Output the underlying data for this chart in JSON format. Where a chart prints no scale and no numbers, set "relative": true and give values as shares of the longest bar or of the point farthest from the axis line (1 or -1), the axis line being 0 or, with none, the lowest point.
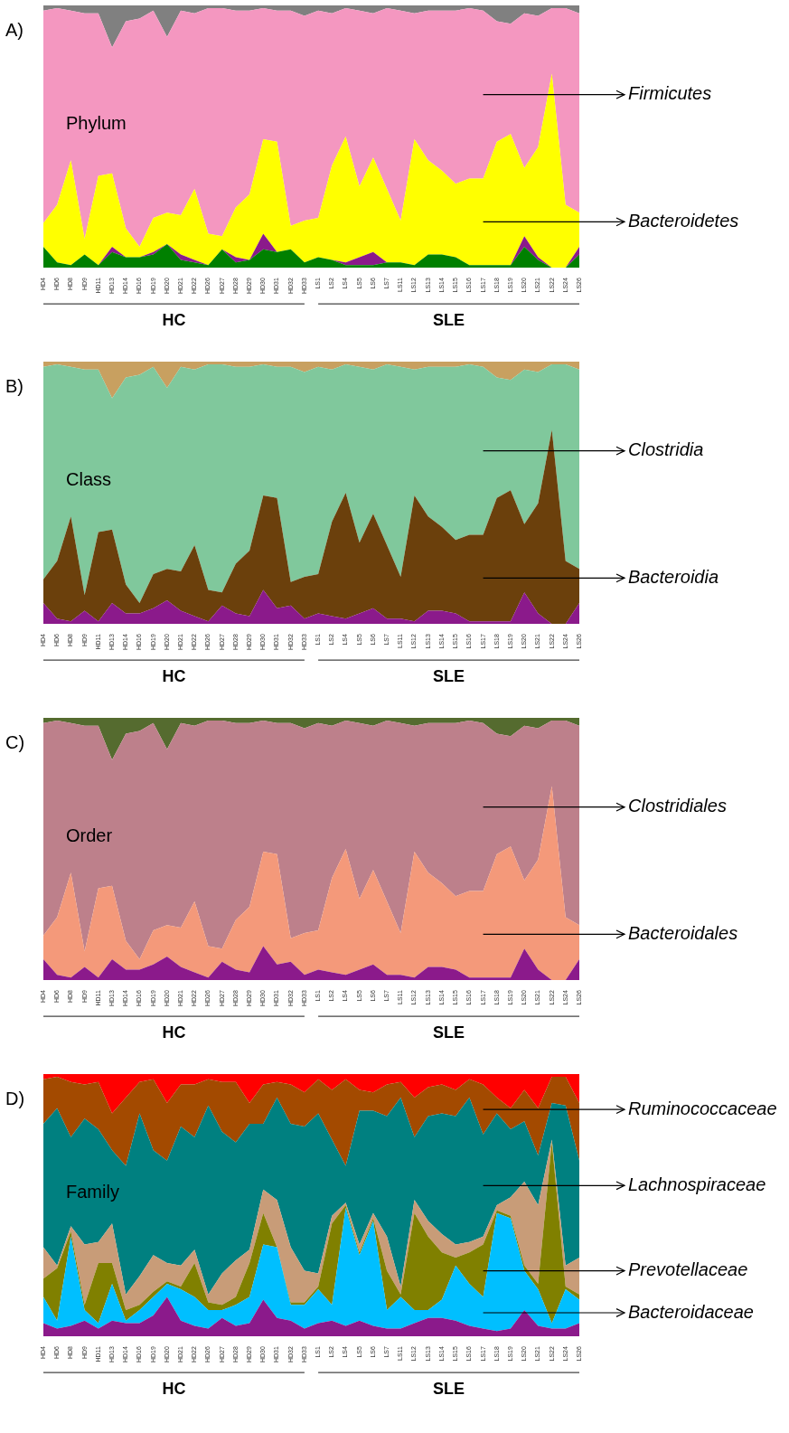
{
  "chart_data": [
    {
      "type": "area",
      "title": "A)",
      "relative": true,
      "stacked": true,
      "annotations": [
        "Phylum",
        "HC",
        "SLE"
      ],
      "categories": [
        "HD4",
        "HD6",
        "HD8",
        "HD9",
        "HD11",
        "HD13",
        "HD14",
        "HD16",
        "HD19",
        "HD20",
        "HD21",
        "HD22",
        "HD26",
        "HD27",
        "HD28",
        "HD29",
        "HD30",
        "HD31",
        "HD32",
        "HD33",
        "LS1",
        "LS2",
        "LS4",
        "LS5",
        "LS6",
        "LS7",
        "LS11",
        "LS12",
        "LS13",
        "LS14",
        "LS15",
        "LS16",
        "LS17",
        "LS18",
        "LS19",
        "LS20",
        "LS21",
        "LS22",
        "LS24",
        "LS26"
      ],
      "series": [
        {
          "color": "#008000",
          "values": [
            0.08,
            0.02,
            0.01,
            0.05,
            0.01,
            0.06,
            0.04,
            0.04,
            0.05,
            0.09,
            0.03,
            0.02,
            0.01,
            0.07,
            0.02,
            0.03,
            0.07,
            0.06,
            0.07,
            0.02,
            0.04,
            0.03,
            0.01,
            0.01,
            0.01,
            0.02,
            0.02,
            0.01,
            0.05,
            0.05,
            0.04,
            0.01,
            0.01,
            0.01,
            0.01,
            0.08,
            0.03,
            0,
            0,
            0.05
          ]
        },
        {
          "color": "#8b1a8b",
          "values": [
            0,
            0,
            0,
            0,
            0,
            0.02,
            0,
            0,
            0.01,
            0,
            0.02,
            0.01,
            0,
            0,
            0.02,
            0,
            0.06,
            0,
            0,
            0,
            0,
            0,
            0.01,
            0.03,
            0.05,
            0,
            0,
            0,
            0,
            0,
            0,
            0,
            0,
            0,
            0,
            0.04,
            0.01,
            0,
            0,
            0.03
          ]
        },
        {
          "name": "Bacteroidetes",
          "color": "#ffff00",
          "values": [
            0.09,
            0.22,
            0.4,
            0.06,
            0.34,
            0.28,
            0.11,
            0.04,
            0.13,
            0.12,
            0.15,
            0.27,
            0.12,
            0.05,
            0.19,
            0.25,
            0.36,
            0.42,
            0.09,
            0.16,
            0.15,
            0.36,
            0.48,
            0.27,
            0.36,
            0.28,
            0.16,
            0.48,
            0.36,
            0.32,
            0.28,
            0.33,
            0.33,
            0.47,
            0.5,
            0.26,
            0.42,
            0.74,
            0.24,
            0.13
          ]
        },
        {
          "name": "Firmicutes",
          "color": "#f497c0",
          "values": [
            0.81,
            0.75,
            0.57,
            0.86,
            0.62,
            0.48,
            0.79,
            0.87,
            0.79,
            0.67,
            0.78,
            0.67,
            0.86,
            0.87,
            0.75,
            0.7,
            0.5,
            0.5,
            0.82,
            0.78,
            0.79,
            0.58,
            0.49,
            0.67,
            0.55,
            0.69,
            0.8,
            0.48,
            0.57,
            0.61,
            0.66,
            0.65,
            0.64,
            0.46,
            0.42,
            0.59,
            0.5,
            0.25,
            0.75,
            0.76
          ]
        },
        {
          "color": "#808080",
          "values": [
            0.02,
            0.01,
            0.02,
            0.03,
            0.03,
            0.16,
            0.06,
            0.05,
            0.02,
            0.12,
            0.02,
            0.03,
            0.01,
            0.01,
            0.02,
            0.02,
            0.01,
            0.02,
            0.02,
            0.04,
            0.02,
            0.03,
            0.01,
            0.02,
            0.03,
            0.01,
            0.02,
            0.03,
            0.02,
            0.02,
            0.02,
            0.01,
            0.02,
            0.06,
            0.07,
            0.03,
            0.04,
            0.01,
            0.01,
            0.03
          ]
        }
      ]
    },
    {
      "type": "area",
      "title": "B)",
      "relative": true,
      "stacked": true,
      "annotations": [
        "Class",
        "HC",
        "SLE"
      ],
      "categories": [
        "HD4",
        "HD6",
        "HD8",
        "HD9",
        "HD11",
        "HD13",
        "HD14",
        "HD16",
        "HD19",
        "HD20",
        "HD21",
        "HD22",
        "HD26",
        "HD27",
        "HD28",
        "HD29",
        "HD30",
        "HD31",
        "HD32",
        "HD33",
        "LS1",
        "LS2",
        "LS4",
        "LS5",
        "LS6",
        "LS7",
        "LS11",
        "LS12",
        "LS13",
        "LS14",
        "LS15",
        "LS16",
        "LS17",
        "LS18",
        "LS19",
        "LS20",
        "LS21",
        "LS22",
        "LS24",
        "LS26"
      ],
      "series": [
        {
          "color": "#8b1a8b",
          "values": [
            0.08,
            0.02,
            0.01,
            0.05,
            0.01,
            0.08,
            0.04,
            0.04,
            0.06,
            0.09,
            0.05,
            0.03,
            0.01,
            0.07,
            0.04,
            0.03,
            0.13,
            0.06,
            0.07,
            0.02,
            0.04,
            0.03,
            0.02,
            0.04,
            0.06,
            0.02,
            0.02,
            0.01,
            0.05,
            0.05,
            0.04,
            0.01,
            0.01,
            0.01,
            0.01,
            0.12,
            0.04,
            0,
            0,
            0.08
          ]
        },
        {
          "name": "Bacteroidia",
          "color": "#6b400c",
          "values": [
            0.09,
            0.22,
            0.4,
            0.06,
            0.34,
            0.28,
            0.11,
            0.04,
            0.13,
            0.12,
            0.15,
            0.27,
            0.12,
            0.05,
            0.19,
            0.25,
            0.36,
            0.42,
            0.09,
            0.16,
            0.15,
            0.36,
            0.48,
            0.27,
            0.36,
            0.28,
            0.16,
            0.48,
            0.36,
            0.32,
            0.28,
            0.33,
            0.33,
            0.47,
            0.5,
            0.26,
            0.42,
            0.74,
            0.24,
            0.13
          ]
        },
        {
          "name": "Clostridia",
          "color": "#80c89c",
          "values": [
            0.81,
            0.75,
            0.57,
            0.86,
            0.62,
            0.5,
            0.79,
            0.87,
            0.79,
            0.69,
            0.78,
            0.67,
            0.86,
            0.87,
            0.75,
            0.7,
            0.5,
            0.5,
            0.82,
            0.78,
            0.79,
            0.58,
            0.49,
            0.67,
            0.55,
            0.69,
            0.8,
            0.48,
            0.57,
            0.61,
            0.66,
            0.65,
            0.64,
            0.46,
            0.42,
            0.59,
            0.5,
            0.25,
            0.75,
            0.76
          ]
        },
        {
          "color": "#c8a060",
          "values": [
            0.02,
            0.01,
            0.02,
            0.03,
            0.03,
            0.14,
            0.06,
            0.05,
            0.02,
            0.1,
            0.02,
            0.03,
            0.01,
            0.01,
            0.02,
            0.02,
            0.01,
            0.02,
            0.02,
            0.04,
            0.02,
            0.03,
            0.01,
            0.02,
            0.03,
            0.01,
            0.02,
            0.03,
            0.02,
            0.02,
            0.02,
            0.01,
            0.02,
            0.06,
            0.07,
            0.03,
            0.04,
            0.01,
            0.01,
            0.03
          ]
        }
      ]
    },
    {
      "type": "area",
      "title": "C)",
      "relative": true,
      "stacked": true,
      "annotations": [
        "Order",
        "HC",
        "SLE"
      ],
      "categories": [
        "HD4",
        "HD6",
        "HD8",
        "HD9",
        "HD11",
        "HD13",
        "HD14",
        "HD16",
        "HD19",
        "HD20",
        "HD21",
        "HD22",
        "HD26",
        "HD27",
        "HD28",
        "HD29",
        "HD30",
        "HD31",
        "HD32",
        "HD33",
        "LS1",
        "LS2",
        "LS4",
        "LS5",
        "LS6",
        "LS7",
        "LS11",
        "LS12",
        "LS13",
        "LS14",
        "LS15",
        "LS16",
        "LS17",
        "LS18",
        "LS19",
        "LS20",
        "LS21",
        "LS22",
        "LS24",
        "LS26"
      ],
      "series": [
        {
          "color": "#8b1a8b",
          "values": [
            0.08,
            0.02,
            0.01,
            0.05,
            0.01,
            0.08,
            0.04,
            0.04,
            0.06,
            0.09,
            0.05,
            0.03,
            0.01,
            0.07,
            0.04,
            0.03,
            0.13,
            0.06,
            0.07,
            0.02,
            0.04,
            0.03,
            0.02,
            0.04,
            0.06,
            0.02,
            0.02,
            0.01,
            0.05,
            0.05,
            0.04,
            0.01,
            0.01,
            0.01,
            0.01,
            0.12,
            0.04,
            0,
            0,
            0.08
          ]
        },
        {
          "name": "Bacteroidales",
          "color": "#f4997a",
          "values": [
            0.09,
            0.22,
            0.4,
            0.06,
            0.34,
            0.28,
            0.11,
            0.04,
            0.13,
            0.12,
            0.15,
            0.27,
            0.12,
            0.05,
            0.19,
            0.25,
            0.36,
            0.42,
            0.09,
            0.16,
            0.15,
            0.36,
            0.48,
            0.27,
            0.36,
            0.28,
            0.16,
            0.48,
            0.36,
            0.32,
            0.28,
            0.33,
            0.33,
            0.47,
            0.5,
            0.26,
            0.42,
            0.74,
            0.24,
            0.13
          ]
        },
        {
          "name": "Clostridiales",
          "color": "#bd808b",
          "values": [
            0.81,
            0.75,
            0.57,
            0.86,
            0.62,
            0.48,
            0.79,
            0.87,
            0.79,
            0.67,
            0.78,
            0.67,
            0.86,
            0.87,
            0.75,
            0.7,
            0.5,
            0.5,
            0.82,
            0.78,
            0.79,
            0.58,
            0.49,
            0.67,
            0.55,
            0.69,
            0.8,
            0.48,
            0.57,
            0.61,
            0.66,
            0.65,
            0.64,
            0.46,
            0.42,
            0.59,
            0.5,
            0.25,
            0.75,
            0.76
          ]
        },
        {
          "color": "#556b2f",
          "values": [
            0.02,
            0.01,
            0.02,
            0.03,
            0.03,
            0.16,
            0.06,
            0.05,
            0.02,
            0.12,
            0.02,
            0.03,
            0.01,
            0.01,
            0.02,
            0.02,
            0.01,
            0.02,
            0.02,
            0.04,
            0.02,
            0.03,
            0.01,
            0.02,
            0.03,
            0.01,
            0.02,
            0.03,
            0.02,
            0.02,
            0.02,
            0.01,
            0.02,
            0.06,
            0.07,
            0.03,
            0.04,
            0.01,
            0.01,
            0.03
          ]
        }
      ]
    },
    {
      "type": "area",
      "title": "D)",
      "relative": true,
      "stacked": true,
      "annotations": [
        "Family",
        "HC",
        "SLE"
      ],
      "categories": [
        "HD4",
        "HD6",
        "HD8",
        "HD9",
        "HD11",
        "HD13",
        "HD14",
        "HD16",
        "HD19",
        "HD20",
        "HD21",
        "HD22",
        "HD26",
        "HD27",
        "HD28",
        "HD29",
        "HD30",
        "HD31",
        "HD32",
        "HD33",
        "LS1",
        "LS2",
        "LS4",
        "LS5",
        "LS6",
        "LS7",
        "LS11",
        "LS12",
        "LS13",
        "LS14",
        "LS15",
        "LS16",
        "LS17",
        "LS18",
        "LS19",
        "LS20",
        "LS21",
        "LS22",
        "LS24",
        "LS26"
      ],
      "series": [
        {
          "color": "#8b1a8b",
          "values": [
            0.05,
            0.03,
            0.04,
            0.06,
            0.03,
            0.06,
            0.05,
            0.05,
            0.08,
            0.15,
            0.06,
            0.04,
            0.03,
            0.07,
            0.04,
            0.05,
            0.14,
            0.07,
            0.06,
            0.03,
            0.05,
            0.06,
            0.04,
            0.06,
            0.04,
            0.03,
            0.03,
            0.05,
            0.07,
            0.07,
            0.06,
            0.04,
            0.03,
            0.02,
            0.03,
            0.1,
            0.04,
            0.03,
            0.03,
            0.05
          ]
        },
        {
          "name": "Bacteroidaceae",
          "color": "#00bfff",
          "values": [
            0.1,
            0.03,
            0.34,
            0.04,
            0.02,
            0.14,
            0.01,
            0.05,
            0.07,
            0.05,
            0.12,
            0.11,
            0.07,
            0.03,
            0.08,
            0.1,
            0.21,
            0.27,
            0.06,
            0.09,
            0.13,
            0.06,
            0.45,
            0.25,
            0.4,
            0.07,
            0.12,
            0.05,
            0.03,
            0.07,
            0.21,
            0.16,
            0.12,
            0.45,
            0.42,
            0.15,
            0.14,
            0.02,
            0.15,
            0.09
          ]
        },
        {
          "name": "Prevotellaceae",
          "color": "#808000",
          "values": [
            0.07,
            0.2,
            0.02,
            0.02,
            0.23,
            0.08,
            0.04,
            0.02,
            0.02,
            0.01,
            0.01,
            0.13,
            0.03,
            0.02,
            0.03,
            0.13,
            0.12,
            0,
            0.01,
            0.01,
            0.01,
            0.31,
            0.01,
            0.01,
            0.01,
            0.15,
            0.01,
            0.37,
            0.28,
            0.18,
            0.03,
            0.12,
            0.2,
            0.01,
            0.01,
            0.02,
            0.02,
            0.69,
            0.01,
            0.02
          ]
        },
        {
          "color": "#c89c78",
          "values": [
            0.12,
            0.01,
            0.02,
            0.23,
            0.08,
            0.15,
            0.06,
            0.11,
            0.14,
            0.07,
            0.08,
            0.05,
            0.03,
            0.12,
            0.14,
            0.05,
            0.09,
            0.18,
            0.21,
            0.12,
            0.05,
            0.03,
            0.01,
            0.03,
            0.02,
            0.13,
            0.03,
            0.05,
            0.06,
            0.07,
            0.05,
            0.04,
            0.03,
            0.02,
            0.07,
            0.32,
            0.3,
            0.01,
            0.08,
            0.14
          ]
        },
        {
          "name": "Lachnospiraceae",
          "color": "#008080",
          "values": [
            0.47,
            0.6,
            0.34,
            0.48,
            0.43,
            0.28,
            0.49,
            0.62,
            0.4,
            0.39,
            0.53,
            0.43,
            0.72,
            0.54,
            0.45,
            0.48,
            0.25,
            0.39,
            0.47,
            0.55,
            0.61,
            0.29,
            0.14,
            0.51,
            0.39,
            0.46,
            0.72,
            0.24,
            0.4,
            0.46,
            0.49,
            0.55,
            0.39,
            0.35,
            0.26,
            0.23,
            0.19,
            0.14,
            0.61,
            0.37
          ]
        },
        {
          "name": "Ruminococcaceae",
          "color": "#a34a00",
          "values": [
            0.17,
            0.12,
            0.21,
            0.13,
            0.18,
            0.14,
            0.26,
            0.12,
            0.27,
            0.22,
            0.16,
            0.2,
            0.1,
            0.19,
            0.23,
            0.08,
            0.15,
            0.06,
            0.15,
            0.13,
            0.13,
            0.19,
            0.33,
            0.08,
            0.07,
            0.12,
            0.06,
            0.15,
            0.11,
            0.11,
            0.1,
            0.07,
            0.19,
            0.06,
            0.08,
            0.12,
            0.18,
            0.1,
            0.11,
            0.22
          ]
        },
        {
          "color": "#ff0000",
          "values": [
            0.02,
            0.01,
            0.03,
            0.04,
            0.03,
            0.15,
            0.09,
            0.03,
            0.02,
            0.11,
            0.04,
            0.04,
            0.02,
            0.03,
            0.03,
            0.11,
            0.04,
            0.03,
            0.04,
            0.07,
            0.02,
            0.06,
            0.02,
            0.06,
            0.07,
            0.04,
            0.03,
            0.09,
            0.05,
            0.04,
            0.06,
            0.02,
            0.04,
            0.09,
            0.13,
            0.06,
            0.13,
            0.01,
            0.01,
            0.11
          ]
        }
      ]
    }
  ]
}
